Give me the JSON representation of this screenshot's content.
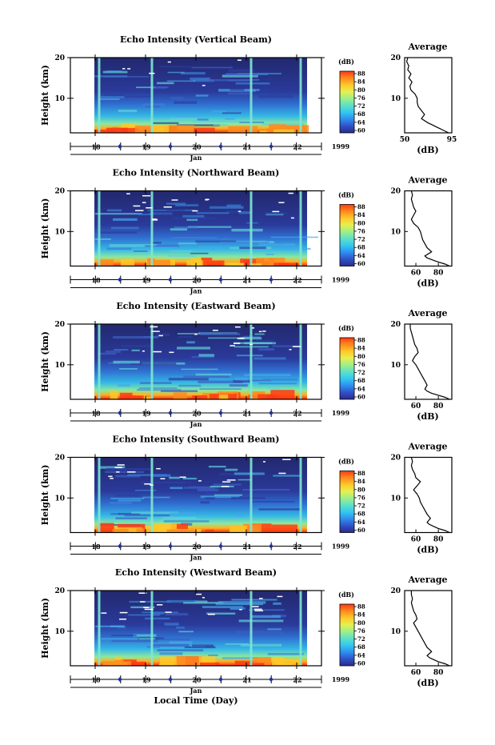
{
  "figure": {
    "x_axis_title": "Local Time (Day)",
    "colors": {
      "field_low": "#2c2f86",
      "field_high": "#ff2400",
      "day_marker": "#1f2f9a",
      "colorbar": [
        "#2a2a8c",
        "#2f52c8",
        "#2f8ef0",
        "#32c8f0",
        "#5ee0c8",
        "#9cf08a",
        "#e6f050",
        "#ffc828",
        "#ff8a1e",
        "#ff3a14"
      ]
    }
  },
  "chart_data": [
    {
      "type": "heatmap",
      "title": "Echo Intensity (Vertical Beam)",
      "ylabel": "Height (km)",
      "xlabel": "Jan",
      "year": "1999",
      "x_ticks": [
        "18",
        "19",
        "20",
        "21",
        "22"
      ],
      "y_ticks": [
        "10",
        "20"
      ],
      "ylim": [
        1.5,
        20
      ],
      "colorbar": {
        "label": "(dB)",
        "ticks": [
          "88",
          "84",
          "80",
          "76",
          "72",
          "68",
          "64",
          "60"
        ]
      },
      "profile": {
        "title": "Average",
        "xlabel": "(dB)",
        "x_ticks": [
          "50",
          "95"
        ],
        "xlim": [
          50,
          95
        ],
        "y_ticks": [
          "10",
          "20"
        ],
        "height_km": [
          1.5,
          2,
          2.5,
          3,
          3.5,
          4,
          5,
          6,
          7,
          8,
          9,
          10,
          11,
          12,
          13,
          14,
          15,
          16,
          17,
          18,
          19,
          20
        ],
        "value_db": [
          92,
          88,
          84,
          80,
          76,
          72,
          66,
          69,
          66,
          63,
          62,
          62,
          60,
          56,
          55,
          57,
          54,
          56,
          53,
          54,
          52,
          53
        ]
      }
    },
    {
      "type": "heatmap",
      "title": "Echo Intensity (Northward Beam)",
      "ylabel": "Height (km)",
      "xlabel": "Jan",
      "year": "1999",
      "x_ticks": [
        "18",
        "19",
        "20",
        "21",
        "22"
      ],
      "y_ticks": [
        "10",
        "20"
      ],
      "ylim": [
        1.5,
        20
      ],
      "colorbar": {
        "label": "(dB)",
        "ticks": [
          "88",
          "84",
          "80",
          "76",
          "72",
          "68",
          "64",
          "60"
        ]
      },
      "profile": {
        "title": "Average",
        "xlabel": "(dB)",
        "x_ticks": [
          "60",
          "80"
        ],
        "xlim": [
          50,
          92
        ],
        "y_ticks": [
          "10",
          "20"
        ],
        "height_km": [
          1.5,
          2,
          2.5,
          3,
          3.5,
          4,
          5,
          6,
          7,
          8,
          9,
          10,
          11,
          12,
          13,
          14,
          15,
          16,
          17,
          18,
          19,
          20
        ],
        "value_db": [
          90,
          86,
          80,
          75,
          70,
          68,
          74,
          70,
          68,
          66,
          65,
          64,
          62,
          58,
          56,
          58,
          60,
          58,
          57,
          56,
          57,
          56
        ]
      }
    },
    {
      "type": "heatmap",
      "title": "Echo Intensity (Eastward Beam)",
      "ylabel": "Height (km)",
      "xlabel": "Jan",
      "year": "1999",
      "x_ticks": [
        "18",
        "19",
        "20",
        "21",
        "22"
      ],
      "y_ticks": [
        "10",
        "20"
      ],
      "ylim": [
        1.5,
        20
      ],
      "colorbar": {
        "label": "(dB)",
        "ticks": [
          "88",
          "84",
          "80",
          "76",
          "72",
          "68",
          "64",
          "60"
        ]
      },
      "profile": {
        "title": "Average",
        "xlabel": "(dB)",
        "x_ticks": [
          "60",
          "80"
        ],
        "xlim": [
          50,
          92
        ],
        "y_ticks": [
          "10",
          "20"
        ],
        "height_km": [
          1.5,
          2,
          2.5,
          3,
          3.5,
          4,
          5,
          6,
          7,
          8,
          9,
          10,
          11,
          12,
          13,
          14,
          15,
          16,
          17,
          18,
          19,
          20
        ],
        "value_db": [
          90,
          86,
          80,
          74,
          70,
          68,
          70,
          68,
          66,
          64,
          62,
          60,
          57,
          59,
          62,
          61,
          59,
          58,
          57,
          56,
          55,
          55
        ]
      }
    },
    {
      "type": "heatmap",
      "title": "Echo Intensity (Southward Beam)",
      "ylabel": "Height (km)",
      "xlabel": "Jan",
      "year": "1999",
      "x_ticks": [
        "18",
        "19",
        "20",
        "21",
        "22"
      ],
      "y_ticks": [
        "10",
        "20"
      ],
      "ylim": [
        1.5,
        20
      ],
      "colorbar": {
        "label": "(dB)",
        "ticks": [
          "88",
          "84",
          "80",
          "76",
          "72",
          "68",
          "64",
          "60"
        ]
      },
      "profile": {
        "title": "Average",
        "xlabel": "(dB)",
        "x_ticks": [
          "60",
          "80"
        ],
        "xlim": [
          50,
          92
        ],
        "y_ticks": [
          "10",
          "20"
        ],
        "height_km": [
          1.5,
          2,
          2.5,
          3,
          3.5,
          4,
          5,
          6,
          7,
          8,
          9,
          10,
          11,
          12,
          13,
          14,
          15,
          16,
          17,
          18,
          19,
          20
        ],
        "value_db": [
          90,
          86,
          80,
          76,
          72,
          70,
          73,
          70,
          68,
          66,
          64,
          63,
          61,
          58,
          61,
          64,
          60,
          59,
          57,
          56,
          57,
          56
        ]
      }
    },
    {
      "type": "heatmap",
      "title": "Echo Intensity (Westward Beam)",
      "ylabel": "Height (km)",
      "xlabel": "Jan",
      "year": "1999",
      "x_ticks": [
        "18",
        "19",
        "20",
        "21",
        "22"
      ],
      "y_ticks": [
        "10",
        "20"
      ],
      "ylim": [
        1.5,
        20
      ],
      "colorbar": {
        "label": "(dB)",
        "ticks": [
          "88",
          "84",
          "80",
          "76",
          "72",
          "68",
          "64",
          "60"
        ]
      },
      "profile": {
        "title": "Average",
        "xlabel": "(dB)",
        "x_ticks": [
          "60",
          "80"
        ],
        "xlim": [
          50,
          92
        ],
        "y_ticks": [
          "10",
          "20"
        ],
        "height_km": [
          1.5,
          2,
          2.5,
          3,
          3.5,
          4,
          5,
          6,
          7,
          8,
          9,
          10,
          11,
          12,
          13,
          14,
          15,
          16,
          17,
          18,
          19,
          20
        ],
        "value_db": [
          90,
          86,
          80,
          76,
          72,
          70,
          74,
          70,
          68,
          66,
          64,
          62,
          60,
          58,
          61,
          60,
          58,
          57,
          56,
          57,
          56,
          56
        ]
      }
    }
  ]
}
